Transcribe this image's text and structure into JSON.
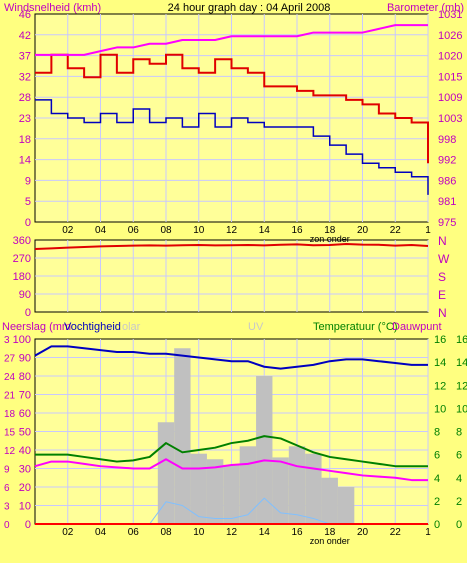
{
  "header": {
    "left_label": "Windsnelheid (kmh)",
    "title": "24 hour graph day : 04 April 2008",
    "right_label": "Barometer (mb)"
  },
  "colors": {
    "background": "#ffff80",
    "plot_bg": "#ffff99",
    "grid": "#c8c8ff",
    "wind_max": "#e00000",
    "wind_avg": "#0000c0",
    "barometer": "#ff00ff",
    "wind_dir": "#e00000",
    "humidity": "#0000c0",
    "temperature": "#008000",
    "dewpoint": "#ff00ff",
    "solar": "#c0c0c0",
    "uv": "#80c0ff",
    "rain": "#ff0000",
    "left_axis_text": "#c000c0",
    "right_axis_text": "#c000c0",
    "temp_axis_text": "#008000"
  },
  "x_axis": {
    "ticks": [
      "02",
      "04",
      "06",
      "08",
      "10",
      "12",
      "14",
      "16",
      "18",
      "20",
      "22",
      "1"
    ],
    "label": "zon onder"
  },
  "panel1": {
    "left_ticks": [
      "46",
      "42",
      "37",
      "32",
      "28",
      "23",
      "18",
      "14",
      "9",
      "5",
      "0"
    ],
    "right_ticks": [
      "1031",
      "1026",
      "1020",
      "1015",
      "1009",
      "1003",
      "998",
      "992",
      "986",
      "981",
      "975"
    ]
  },
  "panel2": {
    "left_ticks": [
      "360",
      "270",
      "180",
      "90",
      "0"
    ],
    "right_ticks": [
      "N",
      "W",
      "S",
      "E",
      "N"
    ]
  },
  "panel3": {
    "labels": {
      "rain": "Neerslag (mm",
      "humidity": "Vochtigheid",
      "solar": "olar",
      "uv": "UV",
      "temperature": "Temperatuur (°C)",
      "dewpoint": "Dauwpunt"
    },
    "left_ticks": [
      "100",
      "90",
      "80",
      "70",
      "60",
      "50",
      "40",
      "30",
      "20",
      "10",
      "0"
    ],
    "rain_ticks": [
      "3",
      "27",
      "24",
      "21",
      "18",
      "15",
      "12",
      "9",
      "6",
      "3",
      "0"
    ],
    "right_ticks": [
      "16",
      "14",
      "12",
      "10",
      "8",
      "6",
      "4",
      "2",
      "0"
    ]
  },
  "chart_data": [
    {
      "type": "line",
      "title": "24 hour graph day : 04 April 2008",
      "x": [
        0,
        1,
        2,
        3,
        4,
        5,
        6,
        7,
        8,
        9,
        10,
        11,
        12,
        13,
        14,
        15,
        16,
        17,
        18,
        19,
        20,
        21,
        22,
        23,
        24
      ],
      "xlabel": "zon onder",
      "ylabel": "Windsnelheid (kmh)",
      "y2label": "Barometer (mb)",
      "ylim": [
        0,
        46
      ],
      "y2lim": [
        975,
        1031
      ],
      "series": [
        {
          "name": "Windsnelheid (kmh)",
          "stat": "max",
          "values": [
            33,
            37,
            34,
            32,
            37,
            33,
            36,
            35,
            37,
            34,
            33,
            36,
            34,
            33,
            30,
            30,
            29,
            28,
            28,
            27,
            26,
            24,
            23,
            22,
            13
          ]
        },
        {
          "name": "Windsnelheid (kmh)",
          "stat": "avg",
          "values": [
            27,
            24,
            23,
            22,
            24,
            22,
            25,
            22,
            23,
            21,
            24,
            21,
            23,
            22,
            21,
            21,
            21,
            19,
            17,
            15,
            13,
            12,
            11,
            10,
            6
          ]
        },
        {
          "name": "Barometer (mb)",
          "values": [
            1020,
            1020,
            1020,
            1020,
            1021,
            1022,
            1022,
            1023,
            1023,
            1024,
            1024,
            1024,
            1025,
            1025,
            1025,
            1025,
            1025,
            1026,
            1026,
            1026,
            1026,
            1027,
            1028,
            1028,
            1028
          ]
        }
      ]
    },
    {
      "type": "line",
      "x": [
        0,
        1,
        2,
        3,
        4,
        5,
        6,
        7,
        8,
        9,
        10,
        11,
        12,
        13,
        14,
        15,
        16,
        17,
        18,
        19,
        20,
        21,
        22,
        23,
        24
      ],
      "ylim": [
        0,
        360
      ],
      "series": [
        {
          "name": "wind direction",
          "values": [
            315,
            318,
            322,
            325,
            328,
            330,
            332,
            333,
            332,
            334,
            335,
            333,
            334,
            335,
            333,
            336,
            338,
            334,
            335,
            340,
            337,
            336,
            332,
            335,
            330
          ]
        }
      ]
    },
    {
      "type": "line",
      "x": [
        0,
        1,
        2,
        3,
        4,
        5,
        6,
        7,
        8,
        9,
        10,
        11,
        12,
        13,
        14,
        15,
        16,
        17,
        18,
        19,
        20,
        21,
        22,
        23,
        24
      ],
      "ylim": [
        0,
        100
      ],
      "y2lim": [
        0,
        16
      ],
      "series": [
        {
          "name": "Vochtigheid",
          "values": [
            91,
            96,
            96,
            95,
            94,
            93,
            93,
            92,
            92,
            91,
            90,
            89,
            88,
            88,
            85,
            84,
            85,
            86,
            88,
            89,
            89,
            88,
            87,
            86,
            86
          ]
        },
        {
          "name": "Temperatuur (°C)",
          "values": [
            6.0,
            6.0,
            6.0,
            5.8,
            5.6,
            5.4,
            5.5,
            5.8,
            7.0,
            6.2,
            6.4,
            6.6,
            7.0,
            7.2,
            7.6,
            7.4,
            6.8,
            6.2,
            5.8,
            5.6,
            5.4,
            5.2,
            5.0,
            5.0,
            5.0
          ]
        },
        {
          "name": "Dauwpunt",
          "values": [
            5.0,
            5.4,
            5.4,
            5.2,
            5.0,
            4.9,
            4.8,
            4.8,
            5.6,
            4.8,
            4.8,
            4.9,
            5.1,
            5.2,
            5.5,
            5.4,
            5.0,
            4.8,
            4.6,
            4.4,
            4.2,
            4.1,
            4.0,
            3.8,
            3.8
          ]
        },
        {
          "name": "olar",
          "values": [
            0,
            0,
            0,
            0,
            0,
            0,
            0,
            0,
            55,
            95,
            38,
            35,
            32,
            42,
            80,
            36,
            42,
            38,
            25,
            20,
            0,
            0,
            0,
            0,
            0
          ]
        },
        {
          "name": "UV",
          "values": [
            0,
            0,
            0,
            0,
            0,
            0,
            0,
            0,
            12,
            10,
            4,
            3,
            3,
            5,
            14,
            6,
            5,
            3,
            0,
            0,
            0,
            0,
            0,
            0,
            0
          ]
        },
        {
          "name": "Neerslag (mm",
          "values": [
            0,
            0,
            0,
            0,
            0,
            0,
            0,
            0,
            0,
            0,
            0,
            0,
            0,
            0,
            0,
            0,
            0,
            0,
            0,
            0,
            0,
            0,
            0,
            0,
            0
          ]
        }
      ]
    }
  ]
}
